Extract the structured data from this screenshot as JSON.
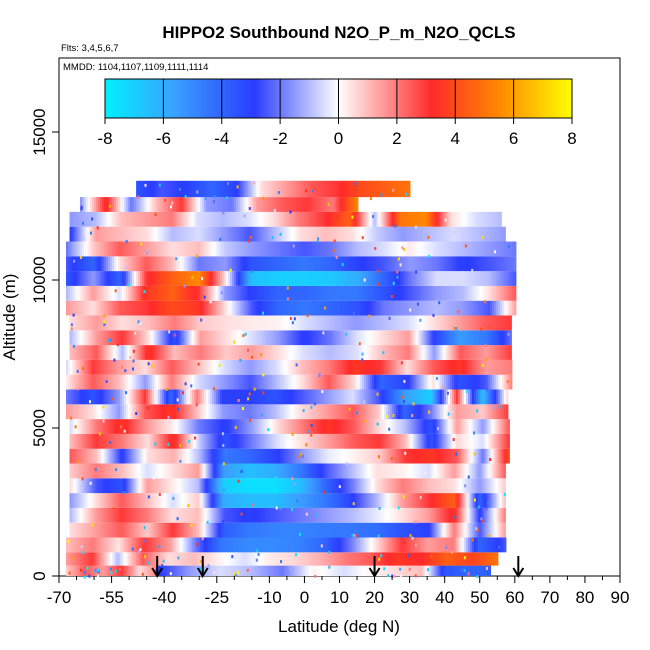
{
  "chart_data": {
    "type": "heatmap",
    "title": "HIPPO2 Southbound N2O_P_m_N2O_QCLS",
    "flights_label": "Flts: 3,4,5,6,7",
    "dates_label": "MMDD: 1104,1107,1109,1111,1114",
    "xlabel": "Latitude (deg N)",
    "ylabel": "Altitude (m)",
    "xlim": [
      -70,
      90
    ],
    "ylim": [
      0,
      17500
    ],
    "x_ticks": [
      -70,
      -55,
      -40,
      -25,
      -10,
      0,
      10,
      20,
      30,
      40,
      50,
      60,
      70,
      80,
      90
    ],
    "x_tick_labels": [
      "-70",
      "-55",
      "-40",
      "-25",
      "-10",
      "0",
      "10",
      "20",
      "30",
      "40",
      "50",
      "60",
      "70",
      "80",
      "90"
    ],
    "x_minor_ticks": [
      -65,
      -60,
      -50,
      -45,
      -35,
      -30,
      -20,
      -15,
      -5,
      5,
      15,
      25,
      35,
      45,
      55,
      65,
      75,
      85
    ],
    "y_ticks": [
      0,
      5000,
      10000,
      15000
    ],
    "y_tick_labels": [
      "0",
      "5000",
      "10000",
      "15000"
    ],
    "colorbar": {
      "min": -8,
      "max": 8,
      "ticks": [
        -8,
        -6,
        -4,
        -2,
        0,
        2,
        4,
        6,
        8
      ],
      "tick_labels": [
        "-8",
        "-6",
        "-4",
        "-2",
        "0",
        "2",
        "4",
        "6",
        "8"
      ],
      "color_stops": [
        "#00f0ff",
        "#3aa0ff",
        "#2a3cff",
        "#ffffff",
        "#ff2a2a",
        "#ff8c00",
        "#ffff00"
      ]
    },
    "arrows_latitude": [
      -42,
      -29,
      20,
      61
    ],
    "layers": [
      {
        "alt": [
          0,
          350
        ],
        "lat": [
          -68,
          -42
        ],
        "vals": [
          0.8,
          2.5,
          1.5,
          3.0,
          0.5,
          2.0
        ]
      },
      {
        "alt": [
          0,
          350
        ],
        "lat": [
          -42,
          20
        ],
        "vals": [
          -3.0,
          -1.5,
          -0.5,
          -1.0,
          -2.0,
          0.2,
          -0.5,
          0.3
        ]
      },
      {
        "alt": [
          0,
          350
        ],
        "lat": [
          20,
          53
        ],
        "vals": [
          0.2,
          0.6,
          1.0,
          -3.5,
          -4.0,
          -3.8
        ]
      },
      {
        "alt": [
          350,
          800
        ],
        "lat": [
          -68,
          55
        ],
        "vals": [
          1.5,
          3.0,
          -1.0,
          2.5,
          0.5,
          1.0,
          0.2,
          -0.5,
          0.3,
          0.6,
          1.2,
          2.0,
          2.5,
          3.5,
          3.2,
          4.5,
          3.8,
          5.0
        ]
      },
      {
        "alt": [
          800,
          1300
        ],
        "lat": [
          -68,
          57
        ],
        "vals": [
          1.0,
          2.0,
          0.4,
          3.0,
          1.5,
          -2.0,
          -4.5,
          -5.0,
          -5.0,
          -4.8,
          -4.0,
          -2.0,
          0.5,
          3.0,
          1.5,
          2.0,
          -4.0,
          -2.5
        ]
      },
      {
        "alt": [
          1300,
          1800
        ],
        "lat": [
          -67,
          57
        ],
        "vals": [
          0.5,
          1.5,
          2.5,
          0.8,
          3.0,
          1.0,
          -3.8,
          -4.5,
          -4.8,
          -4.8,
          -4.6,
          -4.5,
          -4.2,
          -3.5,
          -3.0,
          2.0,
          -2.5,
          1.5
        ]
      },
      {
        "alt": [
          1800,
          2300
        ],
        "lat": [
          -67,
          57
        ],
        "vals": [
          -1.0,
          1.5,
          3.0,
          2.0,
          0.5,
          1.0,
          -2.5,
          -3.0,
          -2.5,
          -2.0,
          -1.5,
          -1.0,
          -0.3,
          0.5,
          1.5,
          3.5,
          -3.0,
          2.0
        ]
      },
      {
        "alt": [
          2300,
          2800
        ],
        "lat": [
          -67,
          57
        ],
        "vals": [
          -1.5,
          0.5,
          2.5,
          1.0,
          -0.5,
          0.8,
          -6.0,
          -6.5,
          -6.5,
          -5.5,
          -4.5,
          -3.0,
          -1.0,
          1.5,
          3.0,
          4.5,
          -4.0,
          1.0
        ]
      },
      {
        "alt": [
          2800,
          3300
        ],
        "lat": [
          -67,
          57
        ],
        "vals": [
          0.5,
          -2.5,
          -3.5,
          1.5,
          0.3,
          -1.0,
          -7.0,
          -7.5,
          -7.5,
          -6.5,
          -4.0,
          -2.0,
          0.5,
          2.0,
          1.0,
          0.5,
          -1.5,
          0.8
        ]
      },
      {
        "alt": [
          3300,
          3800
        ],
        "lat": [
          -67,
          57
        ],
        "vals": [
          0.8,
          2.0,
          1.0,
          -0.5,
          0.5,
          1.5,
          -5.5,
          -6.5,
          -6.0,
          -4.5,
          -2.5,
          -1.0,
          0.5,
          0.2,
          -0.5,
          1.5,
          -1.5,
          2.5
        ]
      },
      {
        "alt": [
          3800,
          4300
        ],
        "lat": [
          -67,
          58
        ],
        "vals": [
          2.5,
          1.0,
          -3.0,
          0.5,
          1.2,
          -1.0,
          -4.5,
          -4.0,
          -3.0,
          -1.5,
          -0.3,
          0.2,
          0.8,
          3.0,
          3.5,
          2.5,
          -2.0,
          4.0
        ]
      },
      {
        "alt": [
          4300,
          4800
        ],
        "lat": [
          -67,
          58
        ],
        "vals": [
          1.0,
          3.0,
          2.0,
          0.5,
          3.5,
          -0.8,
          -3.5,
          -2.0,
          -0.5,
          0.5,
          1.5,
          2.5,
          3.0,
          1.0,
          -3.5,
          0.6,
          -0.5,
          3.0
        ]
      },
      {
        "alt": [
          4800,
          5300
        ],
        "lat": [
          -67,
          58
        ],
        "vals": [
          -0.5,
          2.0,
          3.5,
          1.5,
          0.2,
          -2.0,
          -3.0,
          -1.5,
          0.5,
          2.0,
          3.5,
          2.5,
          0.5,
          -1.0,
          -3.5,
          1.5,
          -1.5,
          2.5
        ]
      },
      {
        "alt": [
          5300,
          5800
        ],
        "lat": [
          -68,
          58
        ],
        "vals": [
          1.5,
          0.5,
          -1.5,
          2.5,
          3.5,
          1.0,
          -1.5,
          -2.0,
          -1.0,
          0.5,
          1.5,
          2.5,
          0.8,
          -4.0,
          -2.0,
          1.5,
          0.8,
          3.0
        ]
      },
      {
        "alt": [
          5800,
          6300
        ],
        "lat": [
          -68,
          58
        ],
        "vals": [
          -2.0,
          -3.5,
          -1.5,
          3.0,
          -4.0,
          2.0,
          -3.0,
          -3.0,
          -3.5,
          -2.5,
          -1.5,
          -0.5,
          -2.5,
          -5.5,
          -7.0,
          3.0,
          -6.5,
          1.0
        ]
      },
      {
        "alt": [
          6300,
          6800
        ],
        "lat": [
          -68,
          59
        ],
        "vals": [
          0.3,
          2.5,
          1.0,
          -1.5,
          2.0,
          -0.5,
          -1.5,
          -2.5,
          -1.0,
          0.5,
          2.5,
          0.5,
          -4.0,
          -3.0,
          0.5,
          -3.5,
          -2.5,
          2.0
        ]
      },
      {
        "alt": [
          6800,
          7300
        ],
        "lat": [
          -68,
          59
        ],
        "vals": [
          -0.5,
          3.0,
          1.5,
          0.5,
          2.5,
          1.0,
          -0.5,
          -1.5,
          -0.5,
          1.0,
          2.0,
          3.5,
          3.0,
          0.5,
          2.5,
          3.5,
          1.5,
          2.0
        ]
      },
      {
        "alt": [
          7300,
          7800
        ],
        "lat": [
          -67,
          59
        ],
        "vals": [
          1.0,
          2.5,
          -1.0,
          3.5,
          1.0,
          2.0,
          0.8,
          1.5,
          0.5,
          -0.5,
          -1.0,
          -0.5,
          1.0,
          2.0,
          -1.5,
          2.5,
          1.5,
          3.0
        ]
      },
      {
        "alt": [
          7800,
          8300
        ],
        "lat": [
          -67,
          59
        ],
        "vals": [
          -1.0,
          1.5,
          3.0,
          0.5,
          -3.5,
          1.5,
          0.5,
          -0.5,
          -1.5,
          -3.0,
          -2.0,
          -0.5,
          0.5,
          1.5,
          -3.0,
          -5.5,
          -4.5,
          -2.0
        ]
      },
      {
        "alt": [
          8300,
          8800
        ],
        "lat": [
          -67,
          59
        ],
        "vals": [
          0.5,
          1.5,
          0.5,
          1.0,
          2.0,
          0.8,
          0.5,
          0.3,
          0.2,
          -0.5,
          -1.0,
          -1.5,
          -1.0,
          -0.5,
          0.5,
          1.5,
          2.5,
          3.0
        ]
      },
      {
        "alt": [
          8800,
          9300
        ],
        "lat": [
          -68,
          60
        ],
        "vals": [
          1.5,
          0.5,
          2.5,
          3.0,
          4.0,
          3.5,
          0.5,
          -2.5,
          -4.0,
          -4.5,
          -4.0,
          -3.5,
          -2.0,
          -1.5,
          -1.0,
          -1.5,
          -2.5,
          1.5
        ]
      },
      {
        "alt": [
          9300,
          9800
        ],
        "lat": [
          -68,
          60
        ],
        "vals": [
          -1.0,
          1.5,
          -0.5,
          3.5,
          4.5,
          3.0,
          -1.5,
          -3.0,
          -4.0,
          -4.0,
          -4.5,
          -4.5,
          -3.5,
          -2.5,
          -1.5,
          -1.0,
          0.5,
          2.5
        ]
      },
      {
        "alt": [
          9800,
          10300
        ],
        "lat": [
          -68,
          60
        ],
        "vals": [
          -3.5,
          -1.5,
          -4.0,
          3.0,
          4.5,
          5.5,
          0.5,
          -6.5,
          -7.0,
          -7.0,
          -6.8,
          -6.0,
          -4.0,
          -2.0,
          -0.5,
          -0.5,
          -1.0,
          -2.5
        ]
      },
      {
        "alt": [
          10300,
          10800
        ],
        "lat": [
          -68,
          60
        ],
        "vals": [
          -2.5,
          -4.0,
          0.5,
          2.5,
          1.0,
          -2.0,
          -1.5,
          -3.5,
          -4.0,
          -4.5,
          -4.0,
          -3.0,
          -2.5,
          -1.5,
          -2.0,
          -3.0,
          -2.5,
          -2.0
        ]
      },
      {
        "alt": [
          10800,
          11300
        ],
        "lat": [
          -68,
          60
        ],
        "vals": [
          -2.0,
          0.8,
          2.5,
          1.5,
          0.5,
          1.0,
          -0.8,
          -1.5,
          -2.0,
          -2.5,
          -2.0,
          -1.0,
          -0.5,
          0.3,
          -0.5,
          -1.0,
          -1.5,
          -2.0
        ]
      },
      {
        "alt": [
          11300,
          11800
        ],
        "lat": [
          -67,
          57
        ],
        "vals": [
          -3.0,
          1.5,
          1.0,
          0.5,
          -1.0,
          -0.5,
          -1.5,
          -2.5,
          -1.0,
          0.5,
          1.0,
          0.5,
          -0.8,
          -1.5,
          -1.0,
          -0.5,
          -1.0,
          -1.5
        ]
      },
      {
        "alt": [
          11800,
          12300
        ],
        "lat": [
          -67,
          56
        ],
        "vals": [
          -1.5,
          -1.0,
          1.0,
          1.5,
          2.0,
          -0.5,
          -1.0,
          -0.5,
          0.5,
          2.0,
          3.0,
          4.5,
          -1.0,
          5.0,
          5.5,
          0.5,
          -0.5,
          -1.0
        ]
      },
      {
        "alt": [
          12300,
          12800
        ],
        "lat": [
          -64,
          15
        ],
        "vals": [
          -1.5,
          3.5,
          -2.0,
          1.0,
          3.0,
          -1.5,
          -2.0,
          1.5,
          2.5,
          3.0,
          2.0,
          5.5
        ]
      },
      {
        "alt": [
          12800,
          13350
        ],
        "lat": [
          -48,
          30
        ],
        "vals": [
          -3.5,
          -2.5,
          -3.0,
          -4.0,
          -3.0,
          0.5,
          1.5,
          2.5,
          3.0,
          4.0,
          4.5,
          5.0
        ]
      }
    ]
  }
}
